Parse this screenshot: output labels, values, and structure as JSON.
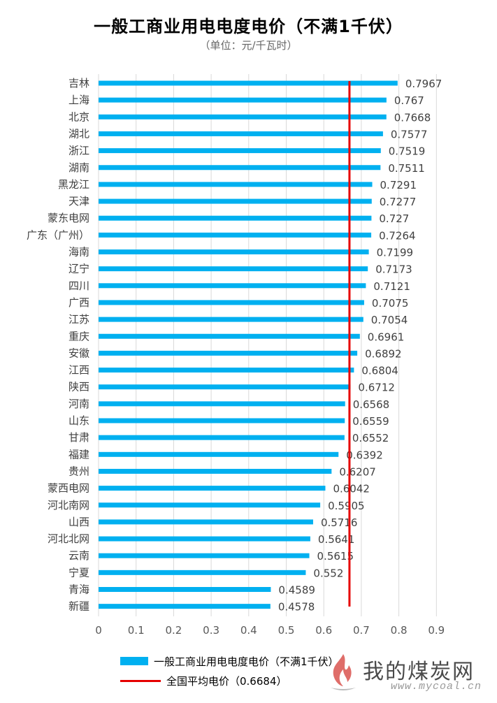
{
  "chart_data": {
    "type": "bar",
    "orientation": "horizontal",
    "title": "一般工商业用电电度电价（不满1千伏）",
    "subtitle": "（单位：元/千瓦时）",
    "categories": [
      "吉林",
      "上海",
      "北京",
      "湖北",
      "浙江",
      "湖南",
      "黑龙江",
      "天津",
      "蒙东电网",
      "广东（广州）",
      "海南",
      "辽宁",
      "四川",
      "广西",
      "江苏",
      "重庆",
      "安徽",
      "江西",
      "陕西",
      "河南",
      "山东",
      "甘肃",
      "福建",
      "贵州",
      "蒙西电网",
      "河北南网",
      "山西",
      "河北北网",
      "云南",
      "宁夏",
      "青海",
      "新疆"
    ],
    "series": [
      {
        "name": "一般工商业用电电度电价（不满1千伏）",
        "color": "#00b0f0",
        "values": [
          0.7967,
          0.767,
          0.7668,
          0.7577,
          0.7519,
          0.7511,
          0.7291,
          0.7277,
          0.727,
          0.7264,
          0.7199,
          0.7173,
          0.7121,
          0.7075,
          0.7054,
          0.6961,
          0.6892,
          0.6804,
          0.6712,
          0.6568,
          0.6559,
          0.6552,
          0.6392,
          0.6207,
          0.6042,
          0.5905,
          0.5716,
          0.5641,
          0.5615,
          0.552,
          0.4589,
          0.4578
        ],
        "value_labels": [
          "0.7967",
          "0.767",
          "0.7668",
          "0.7577",
          "0.7519",
          "0.7511",
          "0.7291",
          "0.7277",
          "0.727",
          "0.7264",
          "0.7199",
          "0.7173",
          "0.7121",
          "0.7075",
          "0.7054",
          "0.6961",
          "0.6892",
          "0.6804",
          "0.6712",
          "0.6568",
          "0.6559",
          "0.6552",
          "0.6392",
          "0.6207",
          "0.6042",
          "0.5905",
          "0.5716",
          "0.5641",
          "0.5615",
          "0.552",
          "0.4589",
          "0.4578"
        ]
      }
    ],
    "reference_line": {
      "name": "全国平均电价（0.6684）",
      "value": 0.6684,
      "color": "#e60000"
    },
    "xlim": [
      0,
      0.9
    ],
    "x_ticks": [
      0,
      0.1,
      0.2,
      0.3,
      0.4,
      0.5,
      0.6,
      0.7,
      0.8,
      0.9
    ],
    "x_tick_labels": [
      "0",
      "0.1",
      "0.2",
      "0.3",
      "0.4",
      "0.5",
      "0.6",
      "0.7",
      "0.8",
      "0.9"
    ],
    "grid": "vertical",
    "legend_position": "bottom",
    "xlabel": "",
    "ylabel": ""
  },
  "legend": {
    "bar_label": "一般工商业用电电度电价（不满1千伏）",
    "line_label": "全国平均电价（0.6684）"
  },
  "watermark": {
    "name": "我的煤炭网",
    "url": "www.mycoal.cn"
  }
}
